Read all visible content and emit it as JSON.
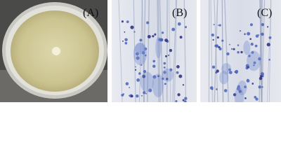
{
  "panels": [
    {
      "label": "(A)"
    },
    {
      "label": "(B)"
    },
    {
      "label": "(C)"
    }
  ]
}
